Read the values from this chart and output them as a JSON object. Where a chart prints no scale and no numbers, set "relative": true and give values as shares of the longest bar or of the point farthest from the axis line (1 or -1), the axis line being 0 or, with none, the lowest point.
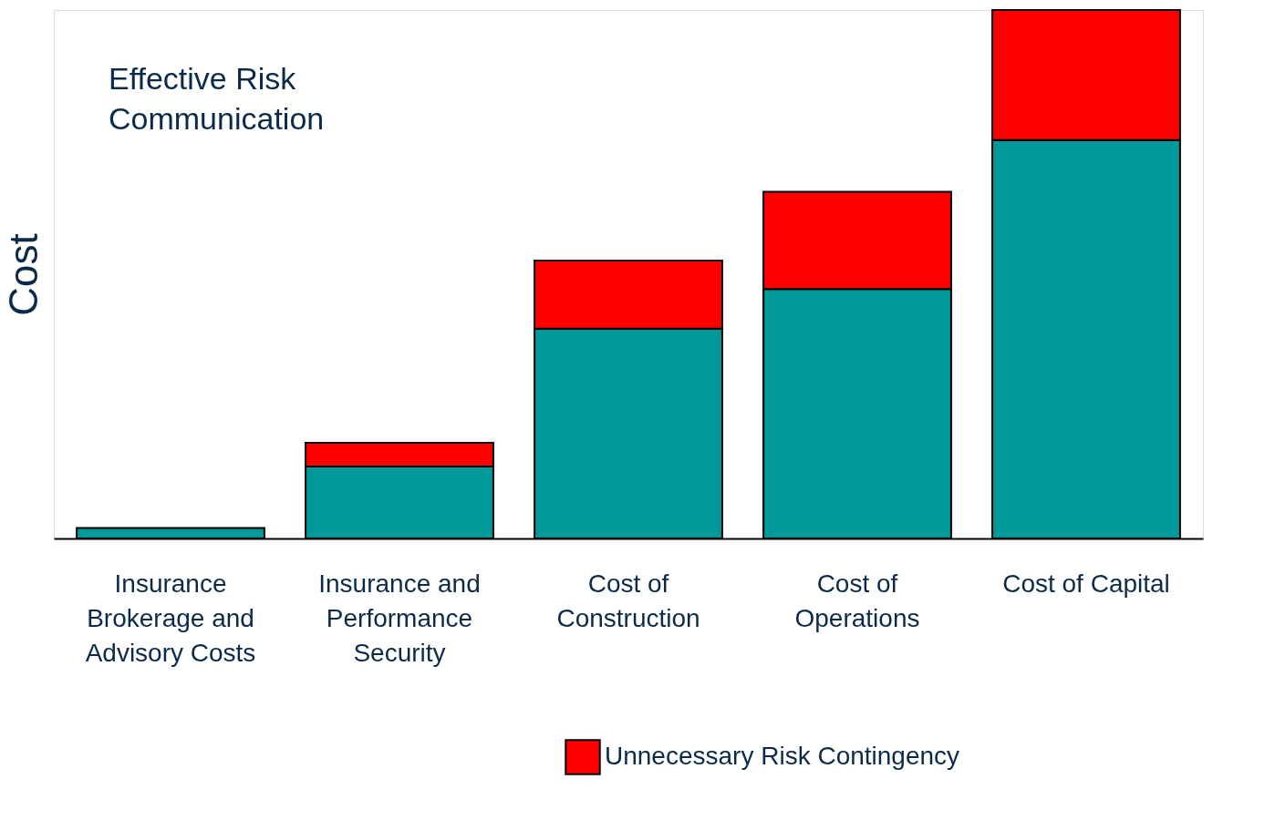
{
  "chart_data": {
    "type": "bar",
    "stacked": true,
    "relative": true,
    "ylabel": "Cost",
    "categories": [
      "Insurance Brokerage and Advisory Costs",
      "Insurance and Performance Security",
      "Cost of Construction",
      "Cost of Operations",
      "Cost of Capital"
    ],
    "series": [
      {
        "color": "#009999",
        "values": [
          0.02,
          0.136,
          0.397,
          0.472,
          0.754
        ]
      },
      {
        "name": "Unnecessary Risk Contingency",
        "color": "#ff0000",
        "values": [
          null,
          0.045,
          0.129,
          0.184,
          0.246
        ]
      }
    ],
    "annotations": [
      "Effective Risk Communication"
    ],
    "legend": "bottom",
    "grid": false
  }
}
